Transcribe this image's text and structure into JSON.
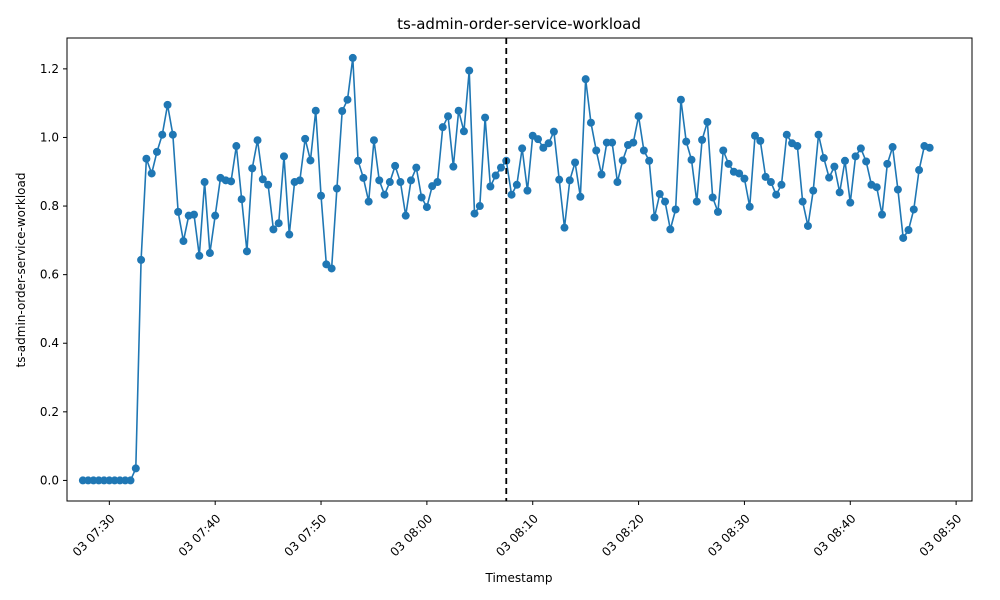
{
  "chart_data": {
    "type": "line",
    "title": "ts-admin-order-service-workload",
    "xlabel": "Timestamp",
    "ylabel": "ts-admin-order-service-workload",
    "x_axis_kind": "time",
    "xlim": [
      "2024-01-03 07:26:00",
      "2024-01-03 08:51:30"
    ],
    "ylim": [
      -0.06,
      1.29
    ],
    "x_ticks": [
      "2024-01-03 07:30:00",
      "2024-01-03 07:40:00",
      "2024-01-03 07:50:00",
      "2024-01-03 08:00:00",
      "2024-01-03 08:10:00",
      "2024-01-03 08:20:00",
      "2024-01-03 08:30:00",
      "2024-01-03 08:40:00",
      "2024-01-03 08:50:00"
    ],
    "x_tick_labels": [
      "03 07:30",
      "03 07:40",
      "03 07:50",
      "03 08:00",
      "03 08:10",
      "03 08:20",
      "03 08:30",
      "03 08:40",
      "03 08:50"
    ],
    "y_ticks": [
      0.0,
      0.2,
      0.4,
      0.6,
      0.8,
      1.0,
      1.2
    ],
    "y_tick_labels": [
      "0.0",
      "0.2",
      "0.4",
      "0.6",
      "0.8",
      "1.0",
      "1.2"
    ],
    "grid": false,
    "legend": "none",
    "marker": "circle",
    "color": "#1f77b4",
    "vline": {
      "x": "2024-01-03 08:07:30",
      "style": "dashed",
      "color": "#000000"
    },
    "series": [
      {
        "x": [
          "2024-01-03 07:27:30",
          "2024-01-03 07:28:00",
          "2024-01-03 07:28:30",
          "2024-01-03 07:29:00",
          "2024-01-03 07:29:30",
          "2024-01-03 07:30:00",
          "2024-01-03 07:30:30",
          "2024-01-03 07:31:00",
          "2024-01-03 07:31:30",
          "2024-01-03 07:32:00",
          "2024-01-03 07:32:30",
          "2024-01-03 07:33:00",
          "2024-01-03 07:33:30",
          "2024-01-03 07:34:00",
          "2024-01-03 07:34:30",
          "2024-01-03 07:35:00",
          "2024-01-03 07:35:30",
          "2024-01-03 07:36:00",
          "2024-01-03 07:36:30",
          "2024-01-03 07:37:00",
          "2024-01-03 07:37:30",
          "2024-01-03 07:38:00",
          "2024-01-03 07:38:30",
          "2024-01-03 07:39:00",
          "2024-01-03 07:39:30",
          "2024-01-03 07:40:00",
          "2024-01-03 07:40:30",
          "2024-01-03 07:41:00",
          "2024-01-03 07:41:30",
          "2024-01-03 07:42:00",
          "2024-01-03 07:42:30",
          "2024-01-03 07:43:00",
          "2024-01-03 07:43:30",
          "2024-01-03 07:44:00",
          "2024-01-03 07:44:30",
          "2024-01-03 07:45:00",
          "2024-01-03 07:45:30",
          "2024-01-03 07:46:00",
          "2024-01-03 07:46:30",
          "2024-01-03 07:47:00",
          "2024-01-03 07:47:30",
          "2024-01-03 07:48:00",
          "2024-01-03 07:48:30",
          "2024-01-03 07:49:00",
          "2024-01-03 07:49:30",
          "2024-01-03 07:50:00",
          "2024-01-03 07:50:30",
          "2024-01-03 07:51:00",
          "2024-01-03 07:51:30",
          "2024-01-03 07:52:00",
          "2024-01-03 07:52:30",
          "2024-01-03 07:53:00",
          "2024-01-03 07:53:30",
          "2024-01-03 07:54:00",
          "2024-01-03 07:54:30",
          "2024-01-03 07:55:00",
          "2024-01-03 07:55:30",
          "2024-01-03 07:56:00",
          "2024-01-03 07:56:30",
          "2024-01-03 07:57:00",
          "2024-01-03 07:57:30",
          "2024-01-03 07:58:00",
          "2024-01-03 07:58:30",
          "2024-01-03 07:59:00",
          "2024-01-03 07:59:30",
          "2024-01-03 08:00:00",
          "2024-01-03 08:00:30",
          "2024-01-03 08:01:00",
          "2024-01-03 08:01:30",
          "2024-01-03 08:02:00",
          "2024-01-03 08:02:30",
          "2024-01-03 08:03:00",
          "2024-01-03 08:03:30",
          "2024-01-03 08:04:00",
          "2024-01-03 08:04:30",
          "2024-01-03 08:05:00",
          "2024-01-03 08:05:30",
          "2024-01-03 08:06:00",
          "2024-01-03 08:06:30",
          "2024-01-03 08:07:00",
          "2024-01-03 08:07:30",
          "2024-01-03 08:08:00",
          "2024-01-03 08:08:30",
          "2024-01-03 08:09:00",
          "2024-01-03 08:09:30",
          "2024-01-03 08:10:00",
          "2024-01-03 08:10:30",
          "2024-01-03 08:11:00",
          "2024-01-03 08:11:30",
          "2024-01-03 08:12:00",
          "2024-01-03 08:12:30",
          "2024-01-03 08:13:00",
          "2024-01-03 08:13:30",
          "2024-01-03 08:14:00",
          "2024-01-03 08:14:30",
          "2024-01-03 08:15:00",
          "2024-01-03 08:15:30",
          "2024-01-03 08:16:00",
          "2024-01-03 08:16:30",
          "2024-01-03 08:17:00",
          "2024-01-03 08:17:30",
          "2024-01-03 08:18:00",
          "2024-01-03 08:18:30",
          "2024-01-03 08:19:00",
          "2024-01-03 08:19:30",
          "2024-01-03 08:20:00",
          "2024-01-03 08:20:30",
          "2024-01-03 08:21:00",
          "2024-01-03 08:21:30",
          "2024-01-03 08:22:00",
          "2024-01-03 08:22:30",
          "2024-01-03 08:23:00",
          "2024-01-03 08:23:30",
          "2024-01-03 08:24:00",
          "2024-01-03 08:24:30",
          "2024-01-03 08:25:00",
          "2024-01-03 08:25:30",
          "2024-01-03 08:26:00",
          "2024-01-03 08:26:30",
          "2024-01-03 08:27:00",
          "2024-01-03 08:27:30",
          "2024-01-03 08:28:00",
          "2024-01-03 08:28:30",
          "2024-01-03 08:29:00",
          "2024-01-03 08:29:30",
          "2024-01-03 08:30:00",
          "2024-01-03 08:30:30",
          "2024-01-03 08:31:00",
          "2024-01-03 08:31:30",
          "2024-01-03 08:32:00",
          "2024-01-03 08:32:30",
          "2024-01-03 08:33:00",
          "2024-01-03 08:33:30",
          "2024-01-03 08:34:00",
          "2024-01-03 08:34:30",
          "2024-01-03 08:35:00",
          "2024-01-03 08:35:30",
          "2024-01-03 08:36:00",
          "2024-01-03 08:36:30",
          "2024-01-03 08:37:00",
          "2024-01-03 08:37:30",
          "2024-01-03 08:38:00",
          "2024-01-03 08:38:30",
          "2024-01-03 08:39:00",
          "2024-01-03 08:39:30",
          "2024-01-03 08:40:00",
          "2024-01-03 08:40:30",
          "2024-01-03 08:41:00",
          "2024-01-03 08:41:30",
          "2024-01-03 08:42:00",
          "2024-01-03 08:42:30",
          "2024-01-03 08:43:00",
          "2024-01-03 08:43:30",
          "2024-01-03 08:44:00",
          "2024-01-03 08:44:30",
          "2024-01-03 08:45:00",
          "2024-01-03 08:45:30",
          "2024-01-03 08:46:00",
          "2024-01-03 08:46:30",
          "2024-01-03 08:47:00",
          "2024-01-03 08:47:30"
        ],
        "values": [
          0.0,
          0.0,
          0.0,
          0.0,
          0.0,
          0.0,
          0.0,
          0.0,
          0.0,
          0.0,
          0.035,
          0.643,
          0.938,
          0.895,
          0.958,
          1.008,
          1.095,
          1.008,
          0.783,
          0.698,
          0.772,
          0.775,
          0.655,
          0.87,
          0.663,
          0.772,
          0.882,
          0.875,
          0.872,
          0.975,
          0.82,
          0.668,
          0.91,
          0.992,
          0.878,
          0.862,
          0.732,
          0.75,
          0.945,
          0.717,
          0.87,
          0.875,
          0.996,
          0.933,
          1.078,
          0.83,
          0.63,
          0.618,
          0.851,
          1.077,
          1.11,
          1.232,
          0.932,
          0.882,
          0.813,
          0.992,
          0.875,
          0.833,
          0.87,
          0.917,
          0.87,
          0.772,
          0.875,
          0.912,
          0.825,
          0.797,
          0.858,
          0.87,
          1.03,
          1.062,
          0.915,
          1.078,
          1.018,
          1.195,
          0.778,
          0.8,
          1.058,
          0.857,
          0.889,
          0.912,
          0.932,
          0.833,
          0.862,
          0.968,
          0.845,
          1.005,
          0.995,
          0.97,
          0.983,
          1.017,
          0.877,
          0.737,
          0.875,
          0.927,
          0.827,
          1.17,
          1.043,
          0.962,
          0.892,
          0.985,
          0.985,
          0.87,
          0.933,
          0.978,
          0.985,
          1.062,
          0.962,
          0.932,
          0.767,
          0.835,
          0.813,
          0.732,
          0.79,
          1.11,
          0.988,
          0.935,
          0.813,
          0.993,
          1.045,
          0.825,
          0.783,
          0.962,
          0.923,
          0.9,
          0.895,
          0.88,
          0.798,
          1.005,
          0.99,
          0.885,
          0.87,
          0.833,
          0.862,
          1.008,
          0.983,
          0.975,
          0.813,
          0.742,
          0.845,
          1.008,
          0.94,
          0.883,
          0.915,
          0.84,
          0.932,
          0.81,
          0.945,
          0.968,
          0.93,
          0.862,
          0.855,
          0.775,
          0.923,
          0.972,
          0.848,
          0.707,
          0.73,
          0.79,
          0.905,
          0.975,
          0.97
        ]
      }
    ]
  }
}
